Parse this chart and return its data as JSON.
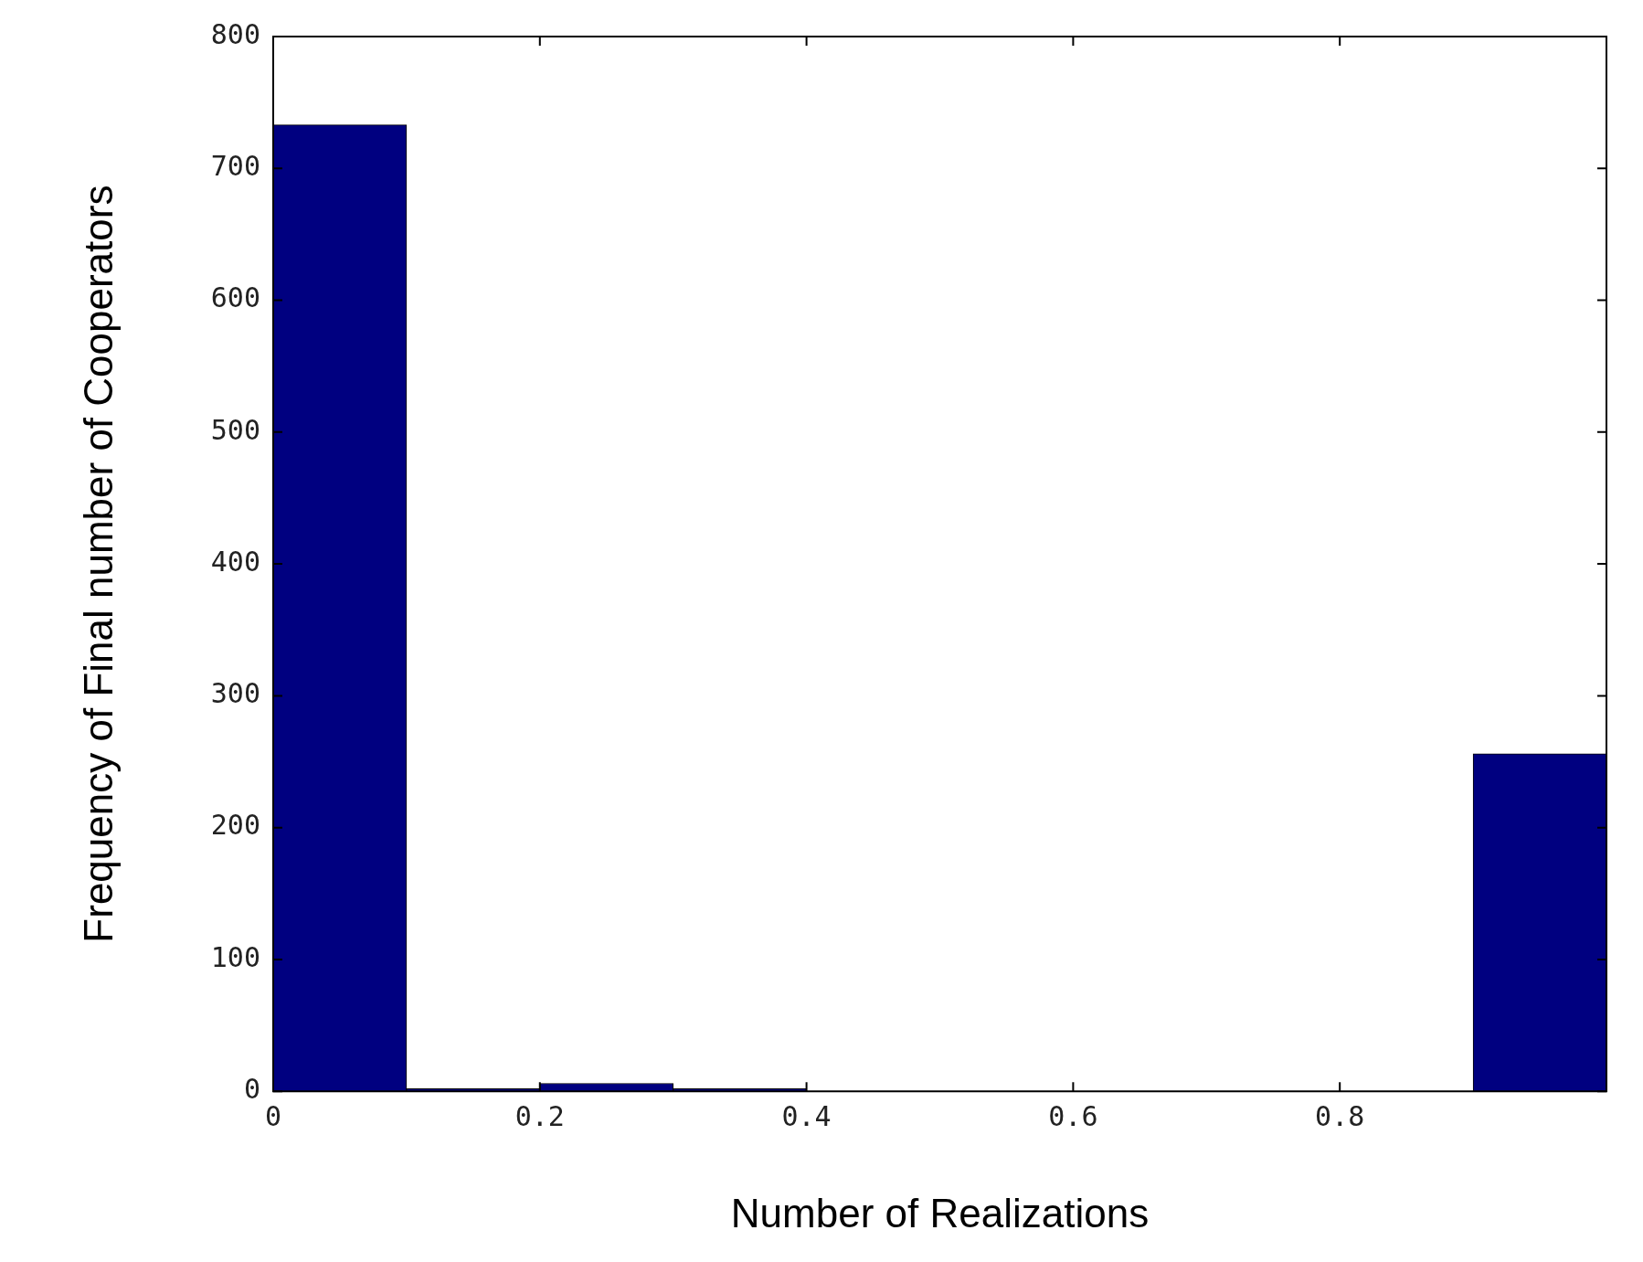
{
  "chart_data": {
    "type": "histogram",
    "xlabel": "Number of Realizations",
    "ylabel": "Frequency of Final number of Cooperators",
    "bins": [
      0,
      0.1,
      0.2,
      0.3,
      0.4,
      0.5,
      0.6,
      0.7,
      0.8,
      0.9,
      1
    ],
    "values": [
      733,
      2,
      6,
      2,
      0,
      0,
      0,
      0,
      0,
      256
    ],
    "color": "#000080",
    "xlim": [
      0,
      1
    ],
    "xticks": [
      0,
      0.2,
      0.4,
      0.6,
      0.8
    ],
    "ylim": [
      0,
      800
    ],
    "yticks": [
      0,
      100,
      200,
      300,
      400,
      500,
      600,
      700,
      800
    ],
    "grid": false,
    "legend": false
  }
}
